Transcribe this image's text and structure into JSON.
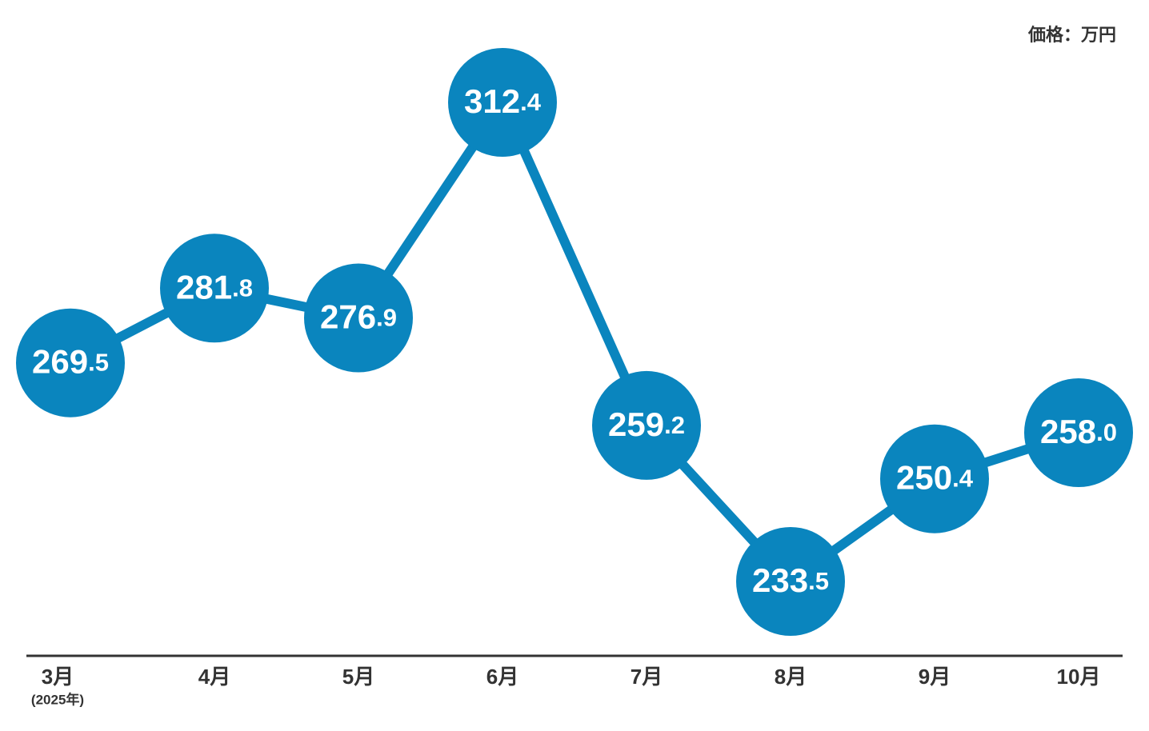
{
  "chart_data": {
    "type": "line",
    "unit_label": "価格：万円",
    "categories": [
      "3月",
      "4月",
      "5月",
      "6月",
      "7月",
      "8月",
      "9月",
      "10月"
    ],
    "category_note": "(2025年)",
    "values": [
      269.5,
      281.8,
      276.9,
      312.4,
      259.2,
      233.5,
      250.4,
      258.0
    ],
    "value_labels": [
      "269.5",
      "281.8",
      "276.9",
      "312.4",
      "259.2",
      "233.5",
      "250.4",
      "258.0"
    ],
    "color": "#0a85be"
  }
}
